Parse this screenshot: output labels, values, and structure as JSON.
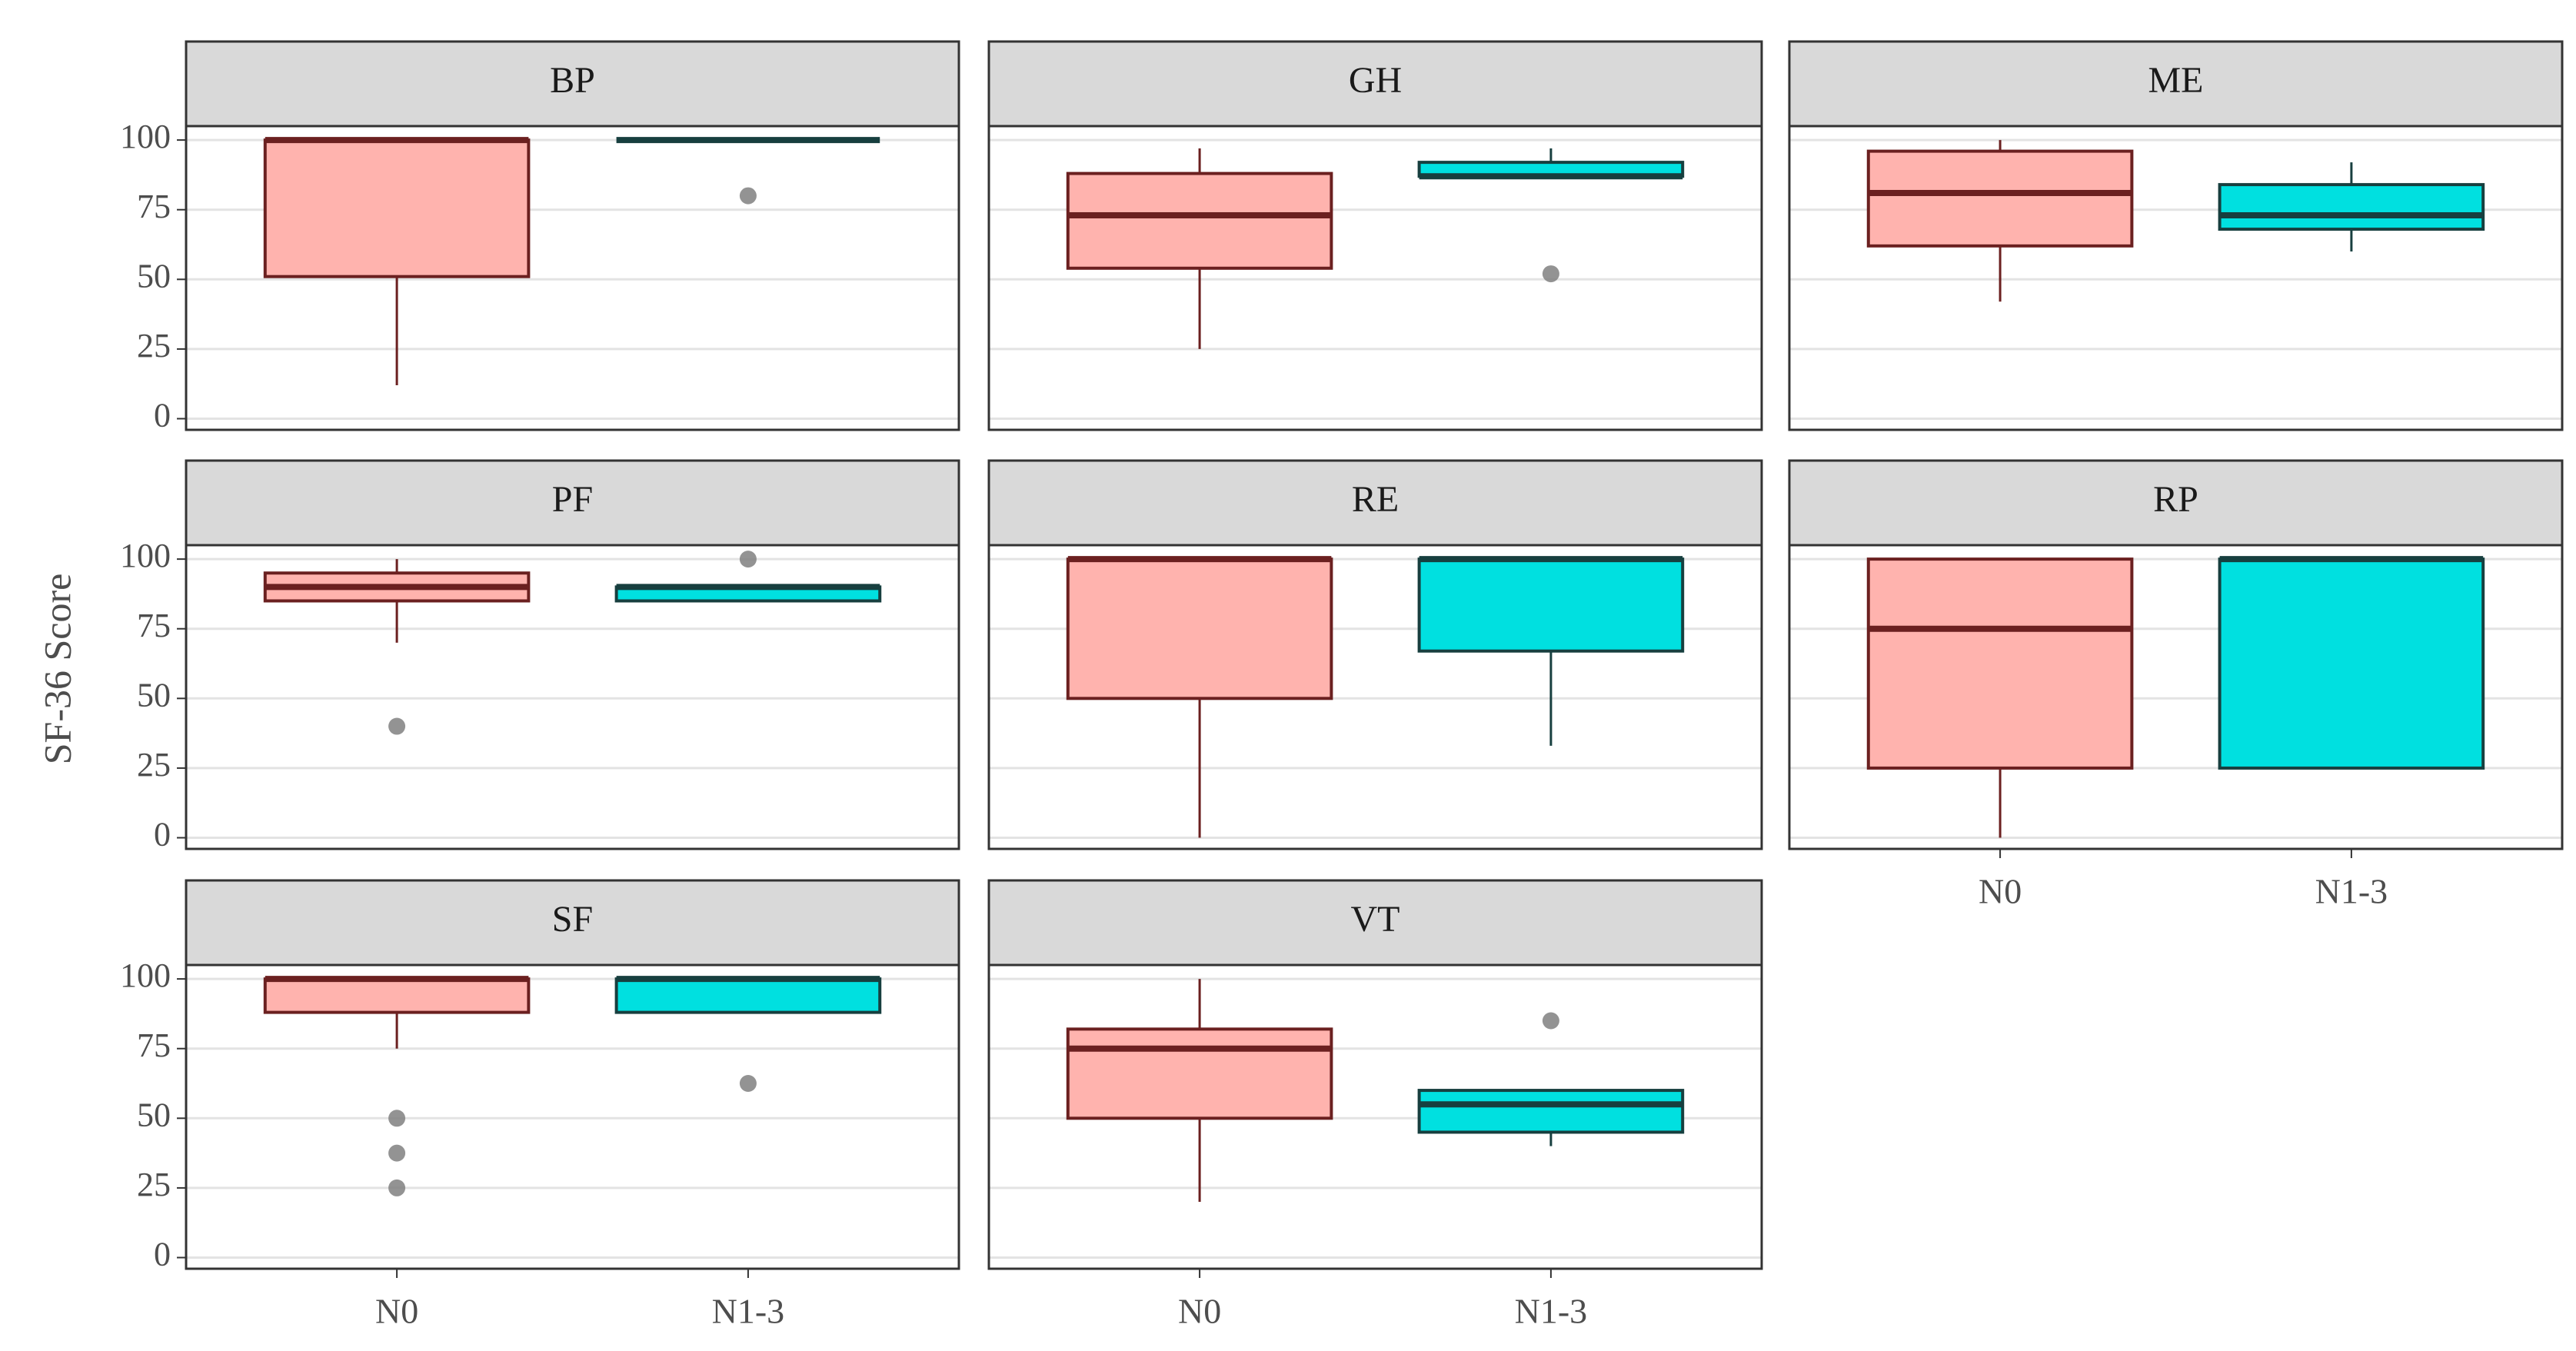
{
  "chart_data": {
    "type": "boxplot",
    "y_label": "SF-36 Score",
    "categories": [
      "N0",
      "N1-3"
    ],
    "fill_colors": [
      "#ffb3ae",
      "#00e0e0"
    ],
    "line_colors": [
      "#6b2020",
      "#173f3f"
    ],
    "outlier_color": "#808080",
    "ylim": [
      -4,
      105
    ],
    "yticks": [
      0,
      25,
      50,
      75,
      100
    ],
    "grid": true,
    "facets": [
      {
        "title": "BP",
        "boxes": [
          {
            "min": 12,
            "q1": 51,
            "median": 100,
            "q3": 100,
            "max": 100,
            "outliers": []
          },
          {
            "min": 100,
            "q1": 100,
            "median": 100,
            "q3": 100,
            "max": 100,
            "outliers": [
              80
            ]
          }
        ]
      },
      {
        "title": "GH",
        "boxes": [
          {
            "min": 25,
            "q1": 54,
            "median": 73,
            "q3": 88,
            "max": 97,
            "outliers": []
          },
          {
            "min": 87,
            "q1": 87,
            "median": 87,
            "q3": 92,
            "max": 97,
            "outliers": [
              52
            ]
          }
        ]
      },
      {
        "title": "ME",
        "boxes": [
          {
            "min": 42,
            "q1": 62,
            "median": 81,
            "q3": 96,
            "max": 100,
            "outliers": []
          },
          {
            "min": 60,
            "q1": 68,
            "median": 73,
            "q3": 84,
            "max": 92,
            "outliers": []
          }
        ]
      },
      {
        "title": "PF",
        "boxes": [
          {
            "min": 70,
            "q1": 85,
            "median": 90,
            "q3": 95,
            "max": 100,
            "outliers": [
              40
            ]
          },
          {
            "min": 85,
            "q1": 85,
            "median": 90,
            "q3": 90,
            "max": 90,
            "outliers": [
              100
            ]
          }
        ]
      },
      {
        "title": "RE",
        "boxes": [
          {
            "min": 0,
            "q1": 50,
            "median": 100,
            "q3": 100,
            "max": 100,
            "outliers": []
          },
          {
            "min": 33,
            "q1": 67,
            "median": 100,
            "q3": 100,
            "max": 100,
            "outliers": []
          }
        ]
      },
      {
        "title": "RP",
        "boxes": [
          {
            "min": 0,
            "q1": 25,
            "median": 75,
            "q3": 100,
            "max": 100,
            "outliers": []
          },
          {
            "min": 25,
            "q1": 25,
            "median": 100,
            "q3": 100,
            "max": 100,
            "outliers": []
          }
        ]
      },
      {
        "title": "SF",
        "boxes": [
          {
            "min": 75,
            "q1": 88,
            "median": 100,
            "q3": 100,
            "max": 100,
            "outliers": [
              50,
              37.5,
              25
            ]
          },
          {
            "min": 88,
            "q1": 88,
            "median": 100,
            "q3": 100,
            "max": 100,
            "outliers": [
              62.5
            ]
          }
        ]
      },
      {
        "title": "VT",
        "boxes": [
          {
            "min": 20,
            "q1": 50,
            "median": 75,
            "q3": 82,
            "max": 100,
            "outliers": []
          },
          {
            "min": 40,
            "q1": 45,
            "median": 55,
            "q3": 60,
            "max": 60,
            "outliers": [
              85
            ]
          }
        ]
      }
    ]
  }
}
